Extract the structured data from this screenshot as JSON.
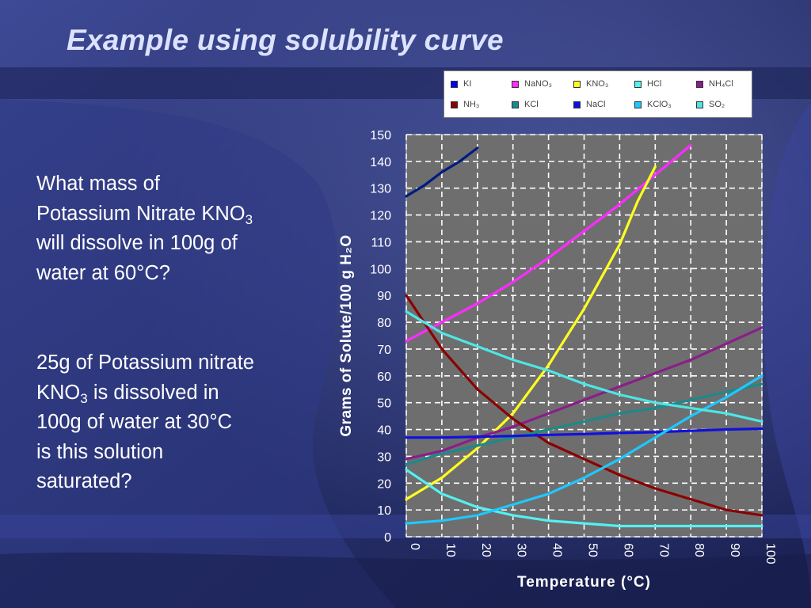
{
  "slide": {
    "title": "Example using solubility curve",
    "question1": {
      "lines": [
        {
          "text": "What mass of"
        },
        {
          "text": "Potassium Nitrate KNO",
          "sub": "3"
        },
        {
          "text": "will dissolve in 100g of"
        },
        {
          "text": "water at 60°C?"
        }
      ]
    },
    "question2": {
      "lines": [
        {
          "text": "25g of Potassium nitrate"
        },
        {
          "text": "KNO",
          "sub": "3",
          "after": " is dissolved in"
        },
        {
          "text": "100g of water  at 30°C"
        },
        {
          "text": "is this solution"
        },
        {
          "text": "saturated?"
        }
      ]
    }
  },
  "chart_data": {
    "type": "line",
    "xlabel": "Temperature (°C)",
    "ylabel": "Grams of Solute/100 g H₂O",
    "xlim": [
      0,
      100
    ],
    "ylim": [
      0,
      150
    ],
    "xticks": [
      "0",
      "10",
      "20",
      "30",
      "40",
      "50",
      "60",
      "70",
      "80",
      "90",
      "100"
    ],
    "yticks": [
      "0",
      "10",
      "20",
      "30",
      "40",
      "50",
      "60",
      "70",
      "80",
      "90",
      "100",
      "110",
      "120",
      "130",
      "140",
      "150"
    ],
    "grid": true,
    "plot_background": "#6e6e6e",
    "legend_position": "top-right",
    "series": [
      {
        "name": "KI",
        "color": "#001a80",
        "legend_color": "#0000ff",
        "x": [
          0,
          5,
          10,
          15,
          20
        ],
        "y": [
          127,
          131,
          136,
          140,
          145
        ]
      },
      {
        "name": "NaNO₃",
        "color": "#ff2bff",
        "x": [
          0,
          10,
          20,
          30,
          40,
          50,
          60,
          70,
          80
        ],
        "y": [
          73,
          80,
          87,
          95,
          104,
          114,
          124,
          135,
          146
        ]
      },
      {
        "name": "KNO₃",
        "color": "#ffff22",
        "x": [
          0,
          10,
          20,
          30,
          40,
          50,
          60,
          65,
          70
        ],
        "y": [
          14,
          22,
          33,
          46,
          64,
          85,
          109,
          125,
          138
        ]
      },
      {
        "name": "HCl",
        "color": "#55f0f0",
        "x": [
          0,
          10,
          20,
          30,
          40,
          50,
          60,
          70,
          80,
          90,
          100
        ],
        "y": [
          25,
          16,
          11,
          8,
          6,
          5,
          4,
          4,
          4,
          4,
          4
        ]
      },
      {
        "name": "NH₄Cl",
        "color": "#8a1e8a",
        "x": [
          0,
          10,
          20,
          30,
          40,
          50,
          60,
          70,
          80,
          90,
          100
        ],
        "y": [
          29,
          32,
          37,
          41,
          46,
          51,
          56,
          61,
          66,
          72,
          78
        ]
      },
      {
        "name": "NH₃",
        "color": "#8b0000",
        "x": [
          0,
          10,
          20,
          30,
          40,
          50,
          60,
          70,
          80,
          90,
          100
        ],
        "y": [
          90,
          70,
          55,
          44,
          35,
          29,
          23,
          18,
          14,
          10,
          8
        ]
      },
      {
        "name": "KCl",
        "color": "#1b8a8a",
        "x": [
          0,
          10,
          20,
          30,
          40,
          50,
          60,
          70,
          80,
          90,
          100
        ],
        "y": [
          27,
          31,
          34,
          37,
          40,
          43,
          46,
          48,
          51,
          54,
          57
        ]
      },
      {
        "name": "NaCl",
        "color": "#1010e0",
        "x": [
          0,
          10,
          20,
          30,
          40,
          50,
          60,
          70,
          80,
          90,
          100
        ],
        "y": [
          37,
          37,
          37.3,
          37.6,
          38,
          38.3,
          38.7,
          39,
          39.5,
          40,
          40.3
        ]
      },
      {
        "name": "KClO₃",
        "color": "#1ec8ff",
        "x": [
          0,
          10,
          20,
          30,
          40,
          50,
          60,
          70,
          80,
          90,
          100
        ],
        "y": [
          5,
          6,
          8,
          12,
          16,
          22,
          29,
          37,
          45,
          52,
          60
        ]
      },
      {
        "name": "SO₂",
        "color": "#4fe5e5",
        "x": [
          0,
          10,
          20,
          30,
          40,
          50,
          60,
          70,
          80,
          90,
          100
        ],
        "y": [
          84,
          76,
          71,
          66,
          62,
          57,
          53,
          50,
          48,
          46,
          43
        ]
      }
    ]
  }
}
